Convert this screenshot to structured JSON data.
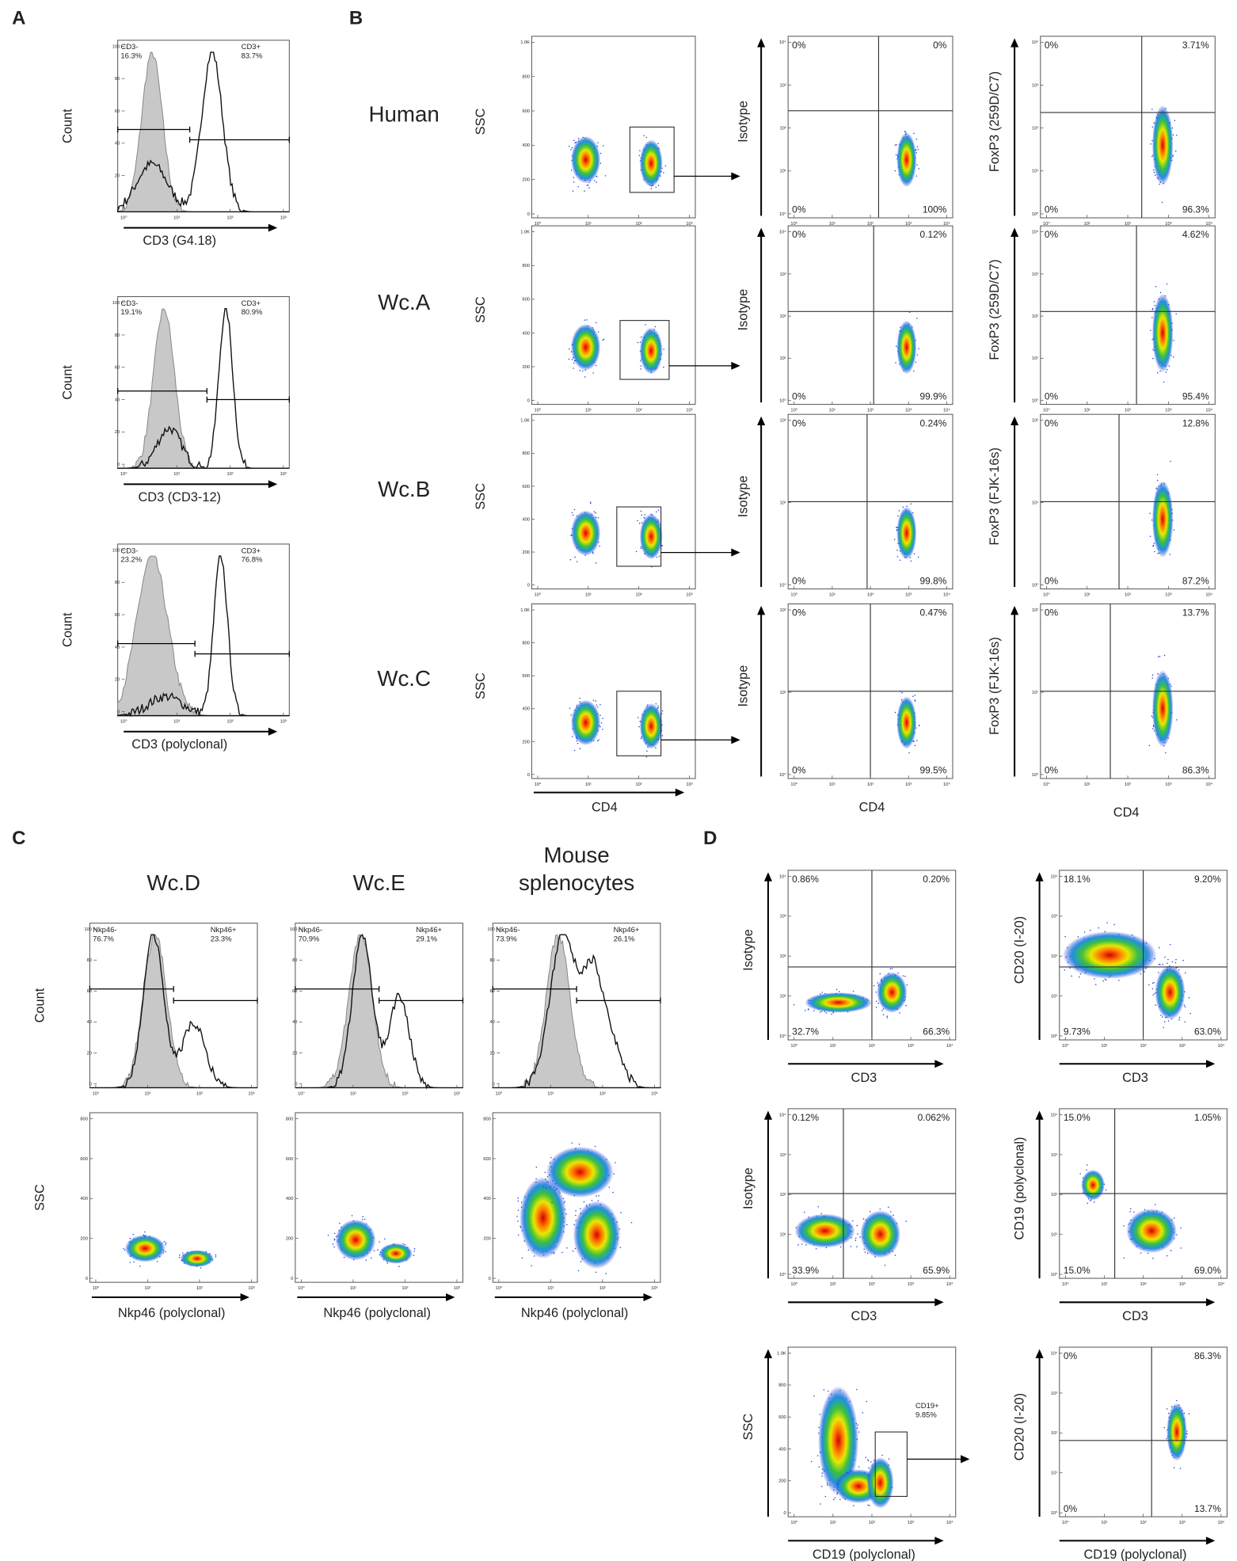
{
  "letters": [
    "A",
    "B",
    "C",
    "D"
  ],
  "axis_ticks": {
    "log": [
      "10⁰",
      "10¹",
      "10²",
      "10³",
      "10⁴"
    ],
    "ssc": [
      "0",
      "200",
      "400",
      "600",
      "800",
      "1.0K"
    ],
    "count": [
      "0",
      "20",
      "40",
      "60",
      "80",
      "100"
    ]
  },
  "panel_a": {
    "ylabel": "Count",
    "plots": [
      {
        "xlabel": "CD3 (G4.18)",
        "neg": [
          "CD3-",
          "16.3%"
        ],
        "pos": [
          "CD3+",
          "83.7%"
        ]
      },
      {
        "xlabel": "CD3 (CD3-12)",
        "neg": [
          "CD3-",
          "19.1%"
        ],
        "pos": [
          "CD3+",
          "80.9%"
        ]
      },
      {
        "xlabel": "CD3 (polyclonal)",
        "neg": [
          "CD3-",
          "23.2%"
        ],
        "pos": [
          "CD3+",
          "76.8%"
        ]
      }
    ]
  },
  "panel_b": {
    "ssc_ylabel": "SSC",
    "iso_ylabel": "Isotype",
    "xlabel": "CD4",
    "rows": [
      {
        "label": "Human",
        "foxp3_ylabel": "FoxP3 (259D/C7)",
        "iso": [
          "0%",
          "0%",
          "0%",
          "100%"
        ],
        "foxp3": [
          "0%",
          "3.71%",
          "0%",
          "96.3%"
        ]
      },
      {
        "label": "Wc.A",
        "foxp3_ylabel": "FoxP3 (259D/C7)",
        "iso": [
          "0%",
          "0.12%",
          "0%",
          "99.9%"
        ],
        "foxp3": [
          "0%",
          "4.62%",
          "0%",
          "95.4%"
        ]
      },
      {
        "label": "Wc.B",
        "foxp3_ylabel": "FoxP3 (FJK-16s)",
        "iso": [
          "0%",
          "0.24%",
          "0%",
          "99.8%"
        ],
        "foxp3": [
          "0%",
          "12.8%",
          "0%",
          "87.2%"
        ]
      },
      {
        "label": "Wc.C",
        "foxp3_ylabel": "FoxP3 (FJK-16s)",
        "iso": [
          "0%",
          "0.47%",
          "0%",
          "99.5%"
        ],
        "foxp3": [
          "0%",
          "13.7%",
          "0%",
          "86.3%"
        ]
      }
    ]
  },
  "panel_c": {
    "count_label": "Count",
    "ssc_label": "SSC",
    "xlabel": "Nkp46 (polyclonal)",
    "cols": [
      {
        "title": [
          "Wc.D"
        ],
        "neg": [
          "Nkp46-",
          "76.7%"
        ],
        "pos": [
          "Nkp46+",
          "23.3%"
        ]
      },
      {
        "title": [
          "Wc.E"
        ],
        "neg": [
          "Nkp46-",
          "70.9%"
        ],
        "pos": [
          "Nkp46+",
          "29.1%"
        ]
      },
      {
        "title": [
          "Mouse",
          "splenocytes"
        ],
        "neg": [
          "Nkp46-",
          "73.9%"
        ],
        "pos": [
          "Nkp46+",
          "26.1%"
        ]
      }
    ]
  },
  "panel_d": {
    "plots": [
      {
        "ylabel": "Isotype",
        "xlabel": "CD3",
        "quads": [
          "0.86%",
          "0.20%",
          "32.7%",
          "66.3%"
        ]
      },
      {
        "ylabel": "CD20 (I-20)",
        "xlabel": "CD3",
        "quads": [
          "18.1%",
          "9.20%",
          "9.73%",
          "63.0%"
        ]
      },
      {
        "ylabel": "Isotype",
        "xlabel": "CD3",
        "quads": [
          "0.12%",
          "0.062%",
          "33.9%",
          "65.9%"
        ]
      },
      {
        "ylabel": "CD19 (polyclonal)",
        "xlabel": "CD3",
        "quads": [
          "15.0%",
          "1.05%",
          "15.0%",
          "69.0%"
        ]
      },
      {
        "ylabel": "SSC",
        "xlabel": "CD19 (polyclonal)",
        "gate": [
          "CD19+",
          "9.85%"
        ]
      },
      {
        "ylabel": "CD20 (I-20)",
        "xlabel": "CD19 (polyclonal)",
        "quads": [
          "0%",
          "86.3%",
          "0%",
          "13.7%"
        ]
      }
    ]
  }
}
